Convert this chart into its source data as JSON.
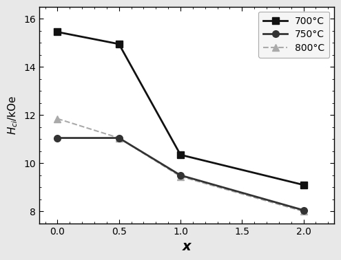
{
  "x": [
    0.0,
    0.5,
    1.0,
    2.0
  ],
  "series": [
    {
      "label": "700°C",
      "y": [
        15.45,
        14.95,
        10.35,
        9.1
      ],
      "color": "#111111",
      "marker": "s",
      "markersize": 7,
      "linewidth": 2.0,
      "linestyle": "-",
      "zorder": 3
    },
    {
      "label": "750°C",
      "y": [
        11.05,
        11.05,
        9.5,
        8.05
      ],
      "color": "#333333",
      "marker": "o",
      "markersize": 7,
      "linewidth": 2.0,
      "linestyle": "-",
      "zorder": 2
    },
    {
      "label": "800°C",
      "y": [
        11.85,
        11.05,
        9.45,
        8.0
      ],
      "color": "#aaaaaa",
      "marker": "^",
      "markersize": 7,
      "linewidth": 1.5,
      "linestyle": "--",
      "zorder": 1
    }
  ],
  "xlabel": "x",
  "ylabel": "$H_{ci}$/kOe",
  "xlim": [
    -0.15,
    2.25
  ],
  "ylim": [
    7.5,
    16.5
  ],
  "xticks": [
    0.0,
    0.5,
    1.0,
    1.5,
    2.0
  ],
  "yticks": [
    8,
    10,
    12,
    14,
    16
  ],
  "legend_loc": "upper right",
  "background_color": "#ffffff",
  "axes_background": "#ffffff",
  "figure_background": "#e8e8e8"
}
